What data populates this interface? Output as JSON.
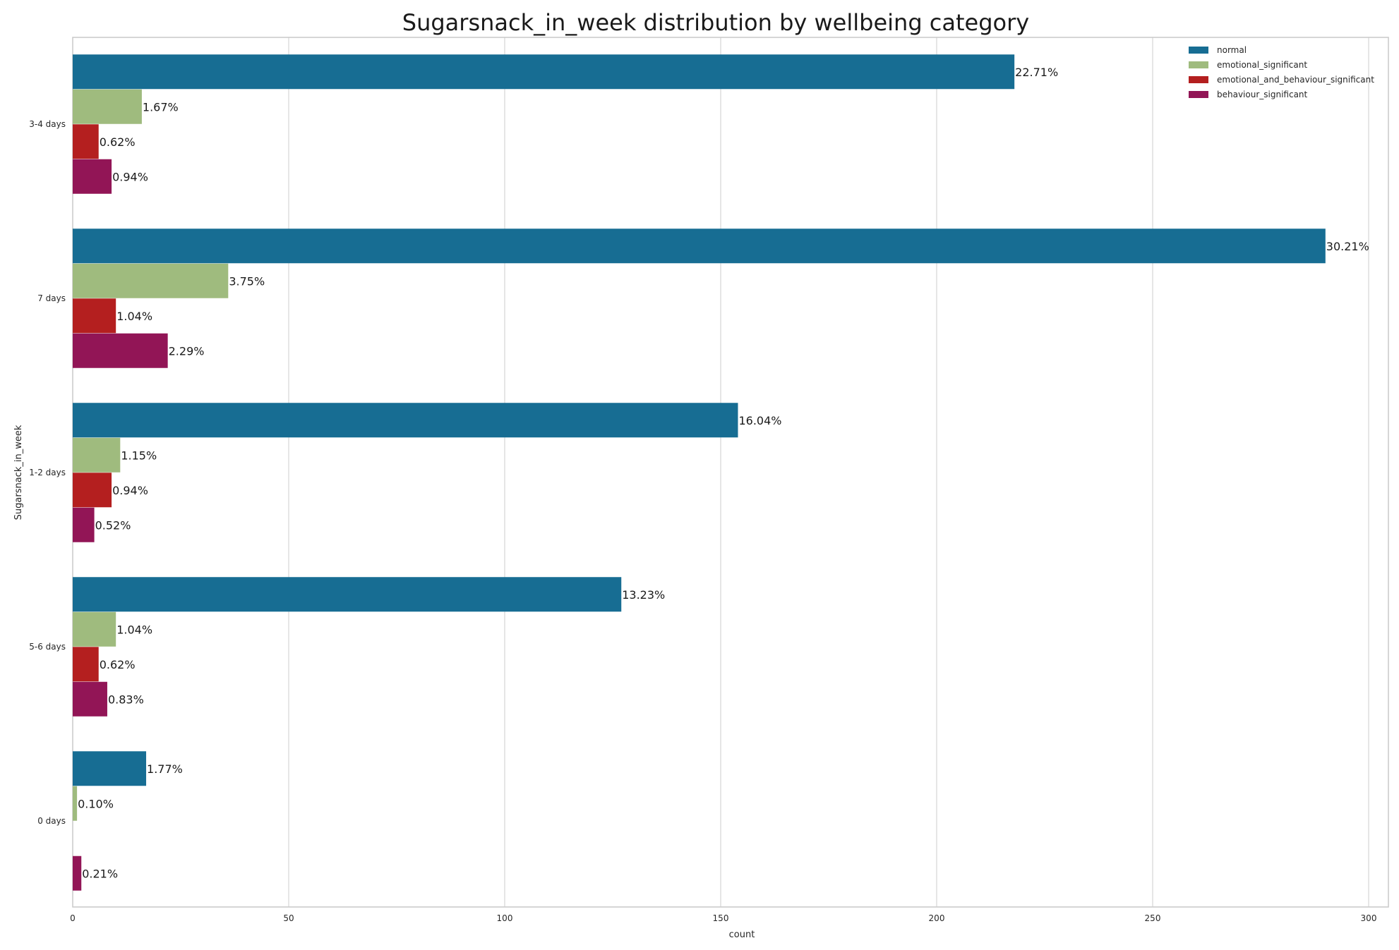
{
  "chart_data": {
    "type": "bar",
    "orientation": "horizontal",
    "title": "Sugarsnack_in_week distribution by wellbeing category",
    "xlabel": "count",
    "ylabel": "Sugarsnack_in_week",
    "xlim": [
      0,
      305
    ],
    "xticks": [
      0,
      50,
      100,
      150,
      200,
      250,
      300
    ],
    "grid": "vertical",
    "legend_position": "top-right",
    "categories": [
      "3-4 days",
      "7 days",
      "1-2 days",
      "5-6 days",
      "0 days"
    ],
    "series": [
      {
        "name": "normal",
        "color": "#176d93",
        "values": [
          218,
          290,
          154,
          127,
          17
        ],
        "labels": [
          "22.71%",
          "30.21%",
          "16.04%",
          "13.23%",
          "1.77%"
        ]
      },
      {
        "name": "emotional_significant",
        "color": "#9fbb7e",
        "values": [
          16,
          36,
          11,
          10,
          1
        ],
        "labels": [
          "1.67%",
          "3.75%",
          "1.15%",
          "1.04%",
          "0.10%"
        ]
      },
      {
        "name": "emotional_and_behaviour_significant",
        "color": "#b41f1f",
        "values": [
          6,
          10,
          9,
          6,
          0
        ],
        "labels": [
          "0.62%",
          "1.04%",
          "0.94%",
          "0.62%",
          ""
        ]
      },
      {
        "name": "behaviour_significant",
        "color": "#921556",
        "values": [
          9,
          22,
          5,
          8,
          2
        ],
        "labels": [
          "0.94%",
          "2.29%",
          "0.52%",
          "0.83%",
          "0.21%"
        ]
      }
    ]
  }
}
